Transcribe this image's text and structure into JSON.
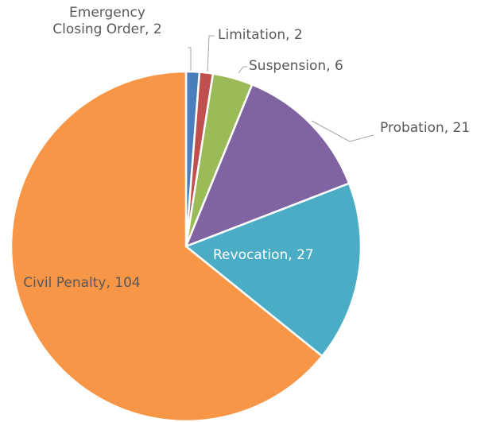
{
  "chart_data": {
    "type": "pie",
    "labels": [
      "Emergency Closing Order, 2",
      "Limitation, 2",
      "Suspension, 6",
      "Probation, 21",
      "Revocation, 27",
      "Civil Penalty, 104"
    ],
    "values": [
      2,
      2,
      6,
      21,
      27,
      104
    ],
    "colors": [
      "#4a7ebb",
      "#c0504d",
      "#9bbb59",
      "#8064a2",
      "#4bacc6",
      "#f79646"
    ]
  }
}
